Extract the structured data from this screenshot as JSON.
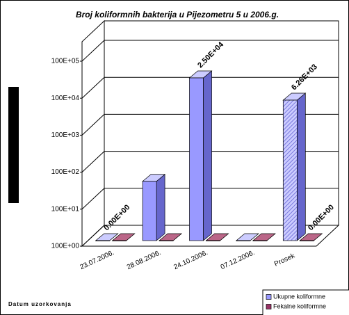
{
  "chart_data": {
    "type": "bar3d",
    "title": "Broj koliformnih bakterija u Pijezometru 5 u 2006.g.",
    "x_label": "Datum uzorkovanja",
    "categories": [
      "23.07.2006.",
      "28.08.2006.",
      "24.10.2006.",
      "07.12.2006.",
      "Prosek"
    ],
    "series": [
      {
        "name": "Ukupne koliformne",
        "color": "#9999ff",
        "values": [
          0,
          40,
          25000,
          0,
          6260
        ],
        "value_labels": [
          "0.00E+00",
          null,
          "2.50E+04",
          null,
          "6.26E+03"
        ]
      },
      {
        "name": "Fekalne koliformne",
        "color": "#993366",
        "values": [
          0,
          0,
          0,
          0,
          0
        ],
        "value_labels": [
          null,
          null,
          null,
          null,
          "0.00E+00"
        ]
      }
    ],
    "log_scale": true,
    "ylim": [
      1,
      100000
    ],
    "yticks": [
      {
        "value": 1,
        "label": "100E+00"
      },
      {
        "value": 10,
        "label": "100E+01"
      },
      {
        "value": 100,
        "label": "100E+02"
      },
      {
        "value": 1000,
        "label": "100E+03"
      },
      {
        "value": 10000,
        "label": "100E+04"
      },
      {
        "value": 100000,
        "label": "100E+05"
      }
    ],
    "grid": true
  }
}
